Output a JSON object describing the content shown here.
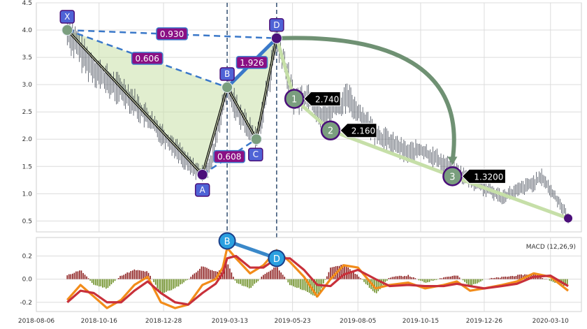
{
  "chart_data": [
    {
      "type": "line",
      "panel": "price",
      "ylim": [
        0.3,
        4.5
      ],
      "y_ticks": [
        "0.5",
        "1.0",
        "1.5",
        "2.0",
        "2.5",
        "3.0",
        "3.5",
        "4.0",
        "4.5"
      ],
      "grid": true,
      "xaxis_dates": [
        "2018-08-06",
        "2018-10-16",
        "2018-12-28",
        "2019-03-13",
        "2019-05-23",
        "2019-08-05",
        "2019-10-15",
        "2019-12-26",
        "2020-03-10"
      ],
      "price_series": [
        [
          "2018-09-10",
          4.0
        ],
        [
          "2018-09-20",
          3.75
        ],
        [
          "2018-10-01",
          3.45
        ],
        [
          "2018-10-16",
          3.2
        ],
        [
          "2018-10-30",
          3.0
        ],
        [
          "2018-11-15",
          2.85
        ],
        [
          "2018-12-01",
          2.55
        ],
        [
          "2018-12-20",
          2.2
        ],
        [
          "2019-01-10",
          1.85
        ],
        [
          "2019-01-25",
          1.55
        ],
        [
          "2019-02-10",
          1.35
        ],
        [
          "2019-02-20",
          1.55
        ],
        [
          "2019-03-01",
          2.3
        ],
        [
          "2019-03-10",
          2.95
        ],
        [
          "2019-03-20",
          2.6
        ],
        [
          "2019-04-01",
          2.25
        ],
        [
          "2019-04-12",
          2.0
        ],
        [
          "2019-04-22",
          2.7
        ],
        [
          "2019-05-02",
          3.6
        ],
        [
          "2019-05-05",
          3.85
        ],
        [
          "2019-05-15",
          3.3
        ],
        [
          "2019-05-25",
          2.7
        ],
        [
          "2019-06-10",
          2.8
        ],
        [
          "2019-06-25",
          2.4
        ],
        [
          "2019-07-10",
          2.6
        ],
        [
          "2019-07-25",
          2.75
        ],
        [
          "2019-08-05",
          2.5
        ],
        [
          "2019-08-25",
          2.1
        ],
        [
          "2019-09-15",
          1.9
        ],
        [
          "2019-10-01",
          1.75
        ],
        [
          "2019-10-15",
          1.8
        ],
        [
          "2019-11-01",
          1.65
        ],
        [
          "2019-11-20",
          1.45
        ],
        [
          "2019-12-05",
          1.3
        ],
        [
          "2019-12-26",
          1.1
        ],
        [
          "2020-01-15",
          0.95
        ],
        [
          "2020-02-01",
          1.05
        ],
        [
          "2020-02-20",
          1.2
        ],
        [
          "2020-03-01",
          1.3
        ],
        [
          "2020-03-10",
          1.05
        ],
        [
          "2020-03-20",
          0.85
        ],
        [
          "2020-03-30",
          0.55
        ]
      ],
      "pattern_points": [
        {
          "label": "X",
          "date": "2018-09-10",
          "value": 4.0
        },
        {
          "label": "A",
          "date": "2019-02-10",
          "value": 1.35
        },
        {
          "label": "B",
          "date": "2019-03-10",
          "value": 2.95
        },
        {
          "label": "C",
          "date": "2019-04-12",
          "value": 2.0
        },
        {
          "label": "D",
          "date": "2019-05-05",
          "value": 3.85
        }
      ],
      "ratios": [
        {
          "text": "0.930",
          "from": "X",
          "to": "D"
        },
        {
          "text": "0.606",
          "from": "X",
          "to": "B"
        },
        {
          "text": "1.926",
          "from": "B",
          "to": "D"
        },
        {
          "text": "0.608",
          "from": "A",
          "to": "C"
        }
      ],
      "targets": [
        {
          "label": "1",
          "value_text": "2.740",
          "date": "2019-05-25",
          "value": 2.74
        },
        {
          "label": "2",
          "value_text": "2.160",
          "date": "2019-07-05",
          "value": 2.16
        },
        {
          "label": "3",
          "value_text": "1.3200",
          "date": "2019-11-20",
          "value": 1.32
        }
      ],
      "last_point": {
        "date": "2020-03-30",
        "value": 0.55
      },
      "vlines": [
        "2019-03-10",
        "2019-05-05"
      ],
      "colors": {
        "pattern_fill": "#c9e0a8",
        "line_blue": "#3a78c9",
        "dark": "#0a0a0a",
        "point_green": "#7a9e7e",
        "point_purple": "#4b0f7a",
        "label_box": "#4f63d6",
        "ratio_box": "#8a0f84",
        "target_path": "#c6dfa8",
        "arc": "#6f9173",
        "vline": "#3f5a7a",
        "price": "#2b3240"
      }
    },
    {
      "type": "line",
      "panel": "macd",
      "title": "MACD (12,26,9)",
      "ylim": [
        -0.28,
        0.36
      ],
      "y_ticks": [
        "-0.2",
        "0.0",
        "0.2"
      ],
      "grid": true,
      "macd_line": [
        [
          "2018-09-10",
          -0.18
        ],
        [
          "2018-09-25",
          -0.05
        ],
        [
          "2018-10-10",
          -0.15
        ],
        [
          "2018-10-25",
          -0.25
        ],
        [
          "2018-11-10",
          -0.18
        ],
        [
          "2018-11-25",
          -0.05
        ],
        [
          "2018-12-10",
          0.02
        ],
        [
          "2018-12-25",
          -0.2
        ],
        [
          "2019-01-10",
          -0.25
        ],
        [
          "2019-01-25",
          -0.22
        ],
        [
          "2019-02-10",
          -0.05
        ],
        [
          "2019-02-25",
          0.0
        ],
        [
          "2019-03-05",
          0.1
        ],
        [
          "2019-03-10",
          0.27
        ],
        [
          "2019-03-20",
          0.18
        ],
        [
          "2019-04-05",
          0.05
        ],
        [
          "2019-04-20",
          0.12
        ],
        [
          "2019-05-05",
          0.25
        ],
        [
          "2019-05-20",
          0.15
        ],
        [
          "2019-06-05",
          0.02
        ],
        [
          "2019-06-20",
          -0.15
        ],
        [
          "2019-07-05",
          0.0
        ],
        [
          "2019-07-20",
          0.12
        ],
        [
          "2019-08-05",
          0.1
        ],
        [
          "2019-08-25",
          -0.08
        ],
        [
          "2019-09-10",
          -0.05
        ],
        [
          "2019-10-01",
          -0.03
        ],
        [
          "2019-10-20",
          -0.08
        ],
        [
          "2019-11-10",
          -0.05
        ],
        [
          "2019-11-25",
          -0.02
        ],
        [
          "2019-12-10",
          -0.1
        ],
        [
          "2019-12-26",
          -0.08
        ],
        [
          "2020-01-15",
          -0.05
        ],
        [
          "2020-02-01",
          -0.02
        ],
        [
          "2020-02-20",
          0.05
        ],
        [
          "2020-03-10",
          0.02
        ],
        [
          "2020-03-30",
          -0.1
        ]
      ],
      "signal_line": [
        [
          "2018-09-10",
          -0.2
        ],
        [
          "2018-09-25",
          -0.1
        ],
        [
          "2018-10-10",
          -0.12
        ],
        [
          "2018-10-25",
          -0.2
        ],
        [
          "2018-11-10",
          -0.2
        ],
        [
          "2018-11-25",
          -0.1
        ],
        [
          "2018-12-10",
          -0.02
        ],
        [
          "2018-12-25",
          -0.12
        ],
        [
          "2019-01-10",
          -0.2
        ],
        [
          "2019-01-25",
          -0.22
        ],
        [
          "2019-02-10",
          -0.12
        ],
        [
          "2019-02-25",
          -0.04
        ],
        [
          "2019-03-05",
          0.05
        ],
        [
          "2019-03-10",
          0.18
        ],
        [
          "2019-03-20",
          0.2
        ],
        [
          "2019-04-05",
          0.1
        ],
        [
          "2019-04-20",
          0.1
        ],
        [
          "2019-05-05",
          0.18
        ],
        [
          "2019-05-20",
          0.18
        ],
        [
          "2019-06-05",
          0.08
        ],
        [
          "2019-06-20",
          -0.05
        ],
        [
          "2019-07-05",
          -0.06
        ],
        [
          "2019-07-20",
          0.04
        ],
        [
          "2019-08-05",
          0.08
        ],
        [
          "2019-08-25",
          0.0
        ],
        [
          "2019-09-10",
          -0.06
        ],
        [
          "2019-10-01",
          -0.05
        ],
        [
          "2019-10-20",
          -0.06
        ],
        [
          "2019-11-10",
          -0.06
        ],
        [
          "2019-11-25",
          -0.04
        ],
        [
          "2019-12-10",
          -0.06
        ],
        [
          "2019-12-26",
          -0.08
        ],
        [
          "2020-01-15",
          -0.06
        ],
        [
          "2020-02-01",
          -0.04
        ],
        [
          "2020-02-20",
          0.02
        ],
        [
          "2020-03-10",
          0.03
        ],
        [
          "2020-03-30",
          -0.06
        ]
      ],
      "divergence_points": [
        {
          "label": "B",
          "date": "2019-03-10",
          "value": 0.33
        },
        {
          "label": "D",
          "date": "2019-05-05",
          "value": 0.18
        }
      ],
      "colors": {
        "macd": "#f28c1a",
        "signal": "#c8303a",
        "hist_pos": "#8b1a1a",
        "hist_neg": "#6b8e23",
        "div_line": "#3a88c9",
        "div_point": "#2aa0e0",
        "div_border": "#1a3f8a"
      }
    }
  ]
}
